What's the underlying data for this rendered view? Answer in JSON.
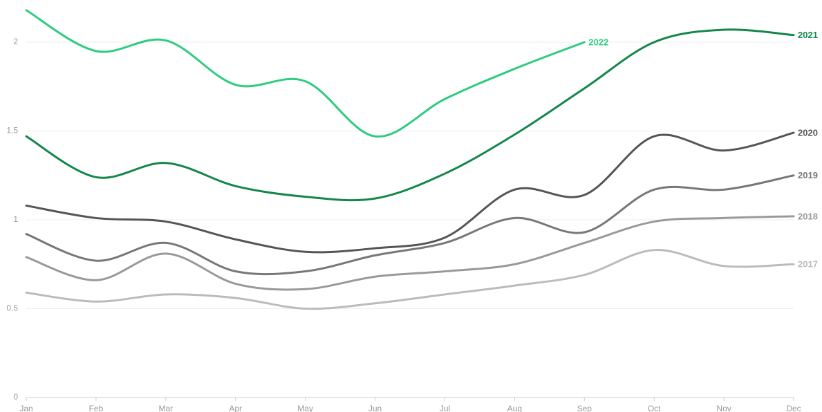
{
  "chart_data": {
    "type": "line",
    "categories": [
      "Jan",
      "Feb",
      "Mar",
      "Apr",
      "May",
      "Jun",
      "Jul",
      "Aug",
      "Sep",
      "Oct",
      "Nov",
      "Dec"
    ],
    "ylim": [
      0,
      2.24
    ],
    "yticks": [
      0,
      0.5,
      1,
      1.5,
      2
    ],
    "grid": true,
    "series": [
      {
        "name": "2017",
        "color": "#bbbbbb",
        "values": [
          0.59,
          0.54,
          0.58,
          0.56,
          0.5,
          0.53,
          0.58,
          0.63,
          0.69,
          0.83,
          0.74,
          0.75
        ]
      },
      {
        "name": "2018",
        "color": "#999999",
        "values": [
          0.79,
          0.66,
          0.81,
          0.64,
          0.61,
          0.68,
          0.71,
          0.75,
          0.87,
          0.99,
          1.01,
          1.02
        ]
      },
      {
        "name": "2019",
        "color": "#777777",
        "values": [
          0.92,
          0.77,
          0.87,
          0.71,
          0.71,
          0.8,
          0.87,
          1.01,
          0.93,
          1.17,
          1.17,
          1.25
        ]
      },
      {
        "name": "2020",
        "color": "#555555",
        "values": [
          1.08,
          1.01,
          0.99,
          0.89,
          0.82,
          0.84,
          0.9,
          1.17,
          1.14,
          1.47,
          1.39,
          1.49
        ]
      },
      {
        "name": "2021",
        "color": "#14874a",
        "values": [
          1.47,
          1.24,
          1.32,
          1.19,
          1.13,
          1.12,
          1.26,
          1.48,
          1.74,
          2.0,
          2.07,
          2.04
        ]
      },
      {
        "name": "2022",
        "color": "#2ecc7f",
        "values": [
          2.18,
          1.95,
          2.01,
          1.76,
          1.78,
          1.47,
          1.68,
          1.85,
          2.0,
          null,
          null,
          null
        ]
      }
    ]
  }
}
